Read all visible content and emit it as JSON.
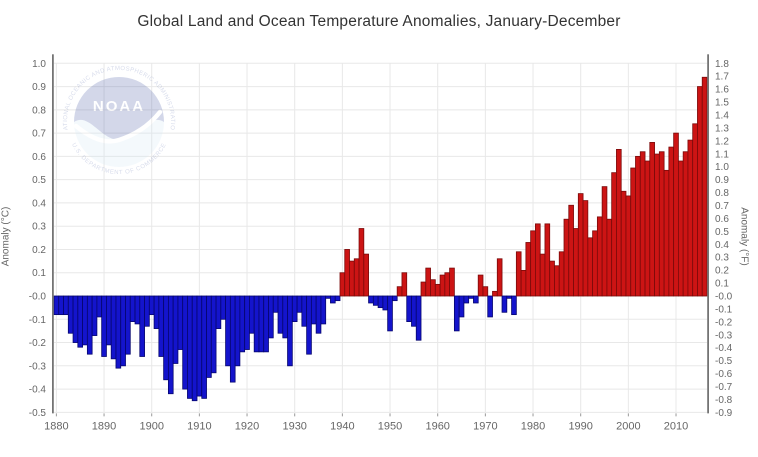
{
  "title": "Global Land and Ocean Temperature Anomalies, January-December",
  "y_left": {
    "title": "Anomaly (°C)",
    "ticks": [
      "1.0",
      "0.9",
      "0.8",
      "0.7",
      "0.6",
      "0.5",
      "0.4",
      "0.3",
      "0.2",
      "0.1",
      "-0.0",
      "-0.1",
      "-0.2",
      "-0.3",
      "-0.4",
      "-0.5"
    ]
  },
  "y_right": {
    "title": "Anomaly (°F)",
    "ticks": [
      "1.8",
      "1.7",
      "1.6",
      "1.5",
      "1.4",
      "1.3",
      "1.2",
      "1.1",
      "1.0",
      "0.9",
      "0.8",
      "0.7",
      "0.6",
      "0.5",
      "0.4",
      "0.3",
      "0.2",
      "0.1",
      "-0.0",
      "-0.1",
      "-0.2",
      "-0.3",
      "-0.4",
      "-0.5",
      "-0.6",
      "-0.7",
      "-0.8",
      "-0.9"
    ]
  },
  "x_axis": {
    "ticks": [
      "1880",
      "1890",
      "1900",
      "1910",
      "1920",
      "1930",
      "1940",
      "1950",
      "1960",
      "1970",
      "1980",
      "1990",
      "2000",
      "2010"
    ]
  },
  "colors": {
    "positive": "#CC1414",
    "positive_border": "#7A0A0A",
    "negative": "#1414CC",
    "negative_border": "#06066E",
    "gridline": "#e8e8e8",
    "axis": "#747474",
    "tick": "#999999",
    "label": "#666666",
    "title_text": "#333333"
  },
  "logo": {
    "acronym": "NOAA",
    "top_text": "NATIONAL OCEANIC AND ATMOSPHERIC ADMINISTRATION",
    "bottom_text": "U.S. DEPARTMENT OF COMMERCE"
  },
  "chart_data": {
    "type": "bar",
    "title": "Global Land and Ocean Temperature Anomalies, January-December",
    "ylabel_left": "Anomaly (°C)",
    "ylabel_right": "Anomaly (°F)",
    "ylim_c": [
      -0.5,
      1.0
    ],
    "ylim_f": [
      -0.9,
      1.8
    ],
    "grid": true,
    "legend": "none",
    "years": [
      1880,
      1881,
      1882,
      1883,
      1884,
      1885,
      1886,
      1887,
      1888,
      1889,
      1890,
      1891,
      1892,
      1893,
      1894,
      1895,
      1896,
      1897,
      1898,
      1899,
      1900,
      1901,
      1902,
      1903,
      1904,
      1905,
      1906,
      1907,
      1908,
      1909,
      1910,
      1911,
      1912,
      1913,
      1914,
      1915,
      1916,
      1917,
      1918,
      1919,
      1920,
      1921,
      1922,
      1923,
      1924,
      1925,
      1926,
      1927,
      1928,
      1929,
      1930,
      1931,
      1932,
      1933,
      1934,
      1935,
      1936,
      1937,
      1938,
      1939,
      1940,
      1941,
      1942,
      1943,
      1944,
      1945,
      1946,
      1947,
      1948,
      1949,
      1950,
      1951,
      1952,
      1953,
      1954,
      1955,
      1956,
      1957,
      1958,
      1959,
      1960,
      1961,
      1962,
      1963,
      1964,
      1965,
      1966,
      1967,
      1968,
      1969,
      1970,
      1971,
      1972,
      1973,
      1974,
      1975,
      1976,
      1977,
      1978,
      1979,
      1980,
      1981,
      1982,
      1983,
      1984,
      1985,
      1986,
      1987,
      1988,
      1989,
      1990,
      1991,
      1992,
      1993,
      1994,
      1995,
      1996,
      1997,
      1998,
      1999,
      2000,
      2001,
      2002,
      2003,
      2004,
      2005,
      2006,
      2007,
      2008,
      2009,
      2010,
      2011,
      2012,
      2013,
      2014,
      2015,
      2016
    ],
    "values_c": [
      -0.08,
      -0.08,
      -0.08,
      -0.16,
      -0.2,
      -0.22,
      -0.21,
      -0.25,
      -0.17,
      -0.09,
      -0.26,
      -0.21,
      -0.27,
      -0.31,
      -0.3,
      -0.25,
      -0.11,
      -0.12,
      -0.26,
      -0.13,
      -0.08,
      -0.14,
      -0.26,
      -0.36,
      -0.42,
      -0.29,
      -0.23,
      -0.4,
      -0.44,
      -0.45,
      -0.43,
      -0.44,
      -0.35,
      -0.33,
      -0.14,
      -0.1,
      -0.3,
      -0.37,
      -0.3,
      -0.24,
      -0.23,
      -0.16,
      -0.24,
      -0.24,
      -0.24,
      -0.18,
      -0.07,
      -0.16,
      -0.18,
      -0.3,
      -0.11,
      -0.07,
      -0.13,
      -0.25,
      -0.12,
      -0.16,
      -0.12,
      -0.01,
      -0.03,
      -0.02,
      0.1,
      0.2,
      0.15,
      0.16,
      0.29,
      0.18,
      -0.03,
      -0.04,
      -0.05,
      -0.06,
      -0.15,
      -0.02,
      0.04,
      0.1,
      -0.11,
      -0.13,
      -0.19,
      0.06,
      0.12,
      0.07,
      0.05,
      0.09,
      0.1,
      0.12,
      -0.15,
      -0.09,
      -0.03,
      -0.01,
      -0.03,
      0.09,
      0.04,
      -0.09,
      0.02,
      0.16,
      -0.07,
      -0.01,
      -0.08,
      0.19,
      0.11,
      0.23,
      0.28,
      0.31,
      0.18,
      0.31,
      0.15,
      0.13,
      0.19,
      0.33,
      0.39,
      0.29,
      0.44,
      0.41,
      0.25,
      0.28,
      0.34,
      0.47,
      0.33,
      0.53,
      0.63,
      0.45,
      0.43,
      0.55,
      0.6,
      0.62,
      0.58,
      0.66,
      0.61,
      0.62,
      0.54,
      0.64,
      0.7,
      0.58,
      0.62,
      0.67,
      0.74,
      0.9,
      0.94
    ]
  }
}
